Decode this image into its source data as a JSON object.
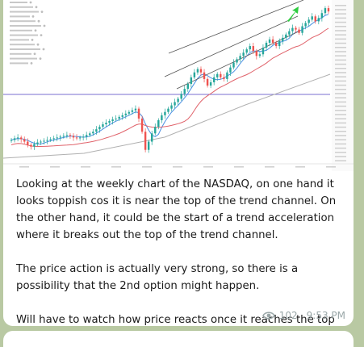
{
  "message": {
    "paragraphs": [
      "Looking at the weekly chart of the NASDAQ, on one hand it looks toppish cos it is near the top of the trend channel. On the other hand, it could be the start of a trend acceleration where it breaks out the top of the trend channel.",
      "The price action is actually very strong, so there is a possibility that the 2nd option might happen.",
      "Will have to watch how price reacts once it reaches the top pf the channel (very close now)."
    ],
    "views": "102",
    "time": "9:53 PM"
  },
  "colors": {
    "background": "#b9c9a3",
    "bubble": "#ffffff",
    "text": "#1a1a1a",
    "meta": "#9aa7a8",
    "candle_up": "#26a69a",
    "candle_down": "#ef5350",
    "channel": "#555555",
    "ma_short": "#4a90e2",
    "ma_mid": "#e0626a",
    "ma_long": "#b0b0b0",
    "horizontal_line": "#7a6fd0",
    "arrow": "#2ecc40"
  },
  "chart_data": {
    "type": "candlestick",
    "series": [
      {
        "values": [
          7800,
          7900,
          7950,
          7850,
          7700,
          7500,
          7400,
          7550,
          7650,
          7700,
          7750,
          7800,
          7850,
          7900,
          7950,
          8000,
          8050,
          8100,
          8050,
          7950,
          7900,
          7950,
          8000,
          8100,
          8200,
          8300,
          8450,
          8600,
          8750,
          8850,
          8950,
          9050,
          9100,
          9200,
          9300,
          9400,
          9500,
          9600,
          9700,
          9100,
          8300,
          7200,
          7700,
          8200,
          8600,
          9000,
          9300,
          9500,
          9700,
          9900,
          10100,
          10300,
          10600,
          10900,
          11200,
          11600,
          11900,
          12100,
          11900,
          11500,
          11100,
          11300,
          11600,
          11800,
          11600,
          11500,
          11900,
          12200,
          12500,
          12700,
          12900,
          13100,
          13300,
          13500,
          13200,
          12900,
          13000,
          13400,
          13700,
          13900,
          13700,
          13500,
          13800,
          14000,
          14200,
          14400,
          14600,
          14500,
          14300,
          14700,
          14900,
          15100,
          15300,
          15000,
          15200,
          15500,
          15800,
          15600
        ]
      }
    ]
  }
}
